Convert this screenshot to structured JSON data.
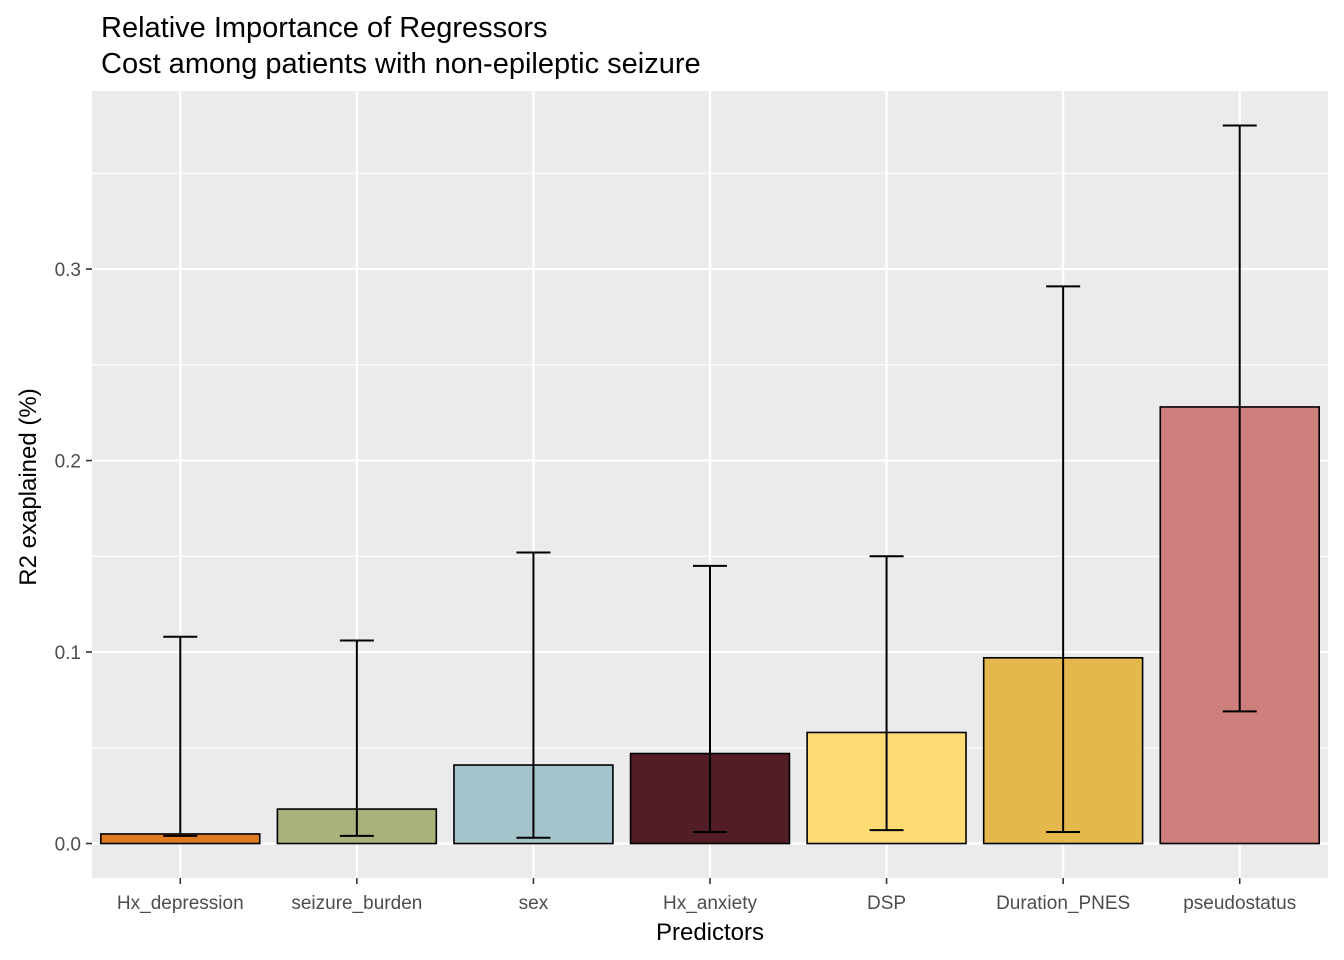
{
  "chart_data": {
    "type": "bar",
    "title": "Relative Importance of Regressors",
    "subtitle": "Cost among patients with non-epileptic seizure",
    "xlabel": "Predictors",
    "ylabel": "R2 exaplained (%)",
    "categories": [
      "Hx_depression",
      "seizure_burden",
      "sex",
      "Hx_anxiety",
      "DSP",
      "Duration_PNES",
      "pseudostatus"
    ],
    "values": [
      0.005,
      0.018,
      0.041,
      0.047,
      0.058,
      0.097,
      0.228
    ],
    "error_lower": [
      0.004,
      0.004,
      0.003,
      0.006,
      0.007,
      0.006,
      0.069
    ],
    "error_upper": [
      0.108,
      0.106,
      0.152,
      0.145,
      0.15,
      0.291,
      0.375
    ],
    "colors": [
      "#E07A1F",
      "#A9B27A",
      "#A3C4CB",
      "#521D25",
      "#FDDC74",
      "#E5B84D",
      "#CF7E7E"
    ],
    "yticks": [
      "0.0",
      "0.1",
      "0.2",
      "0.3"
    ],
    "ylim": [
      -0.018,
      0.393
    ],
    "grid": true,
    "legend": "none",
    "panel_background": "#EBEBEB",
    "grid_color": "#FFFFFF"
  }
}
